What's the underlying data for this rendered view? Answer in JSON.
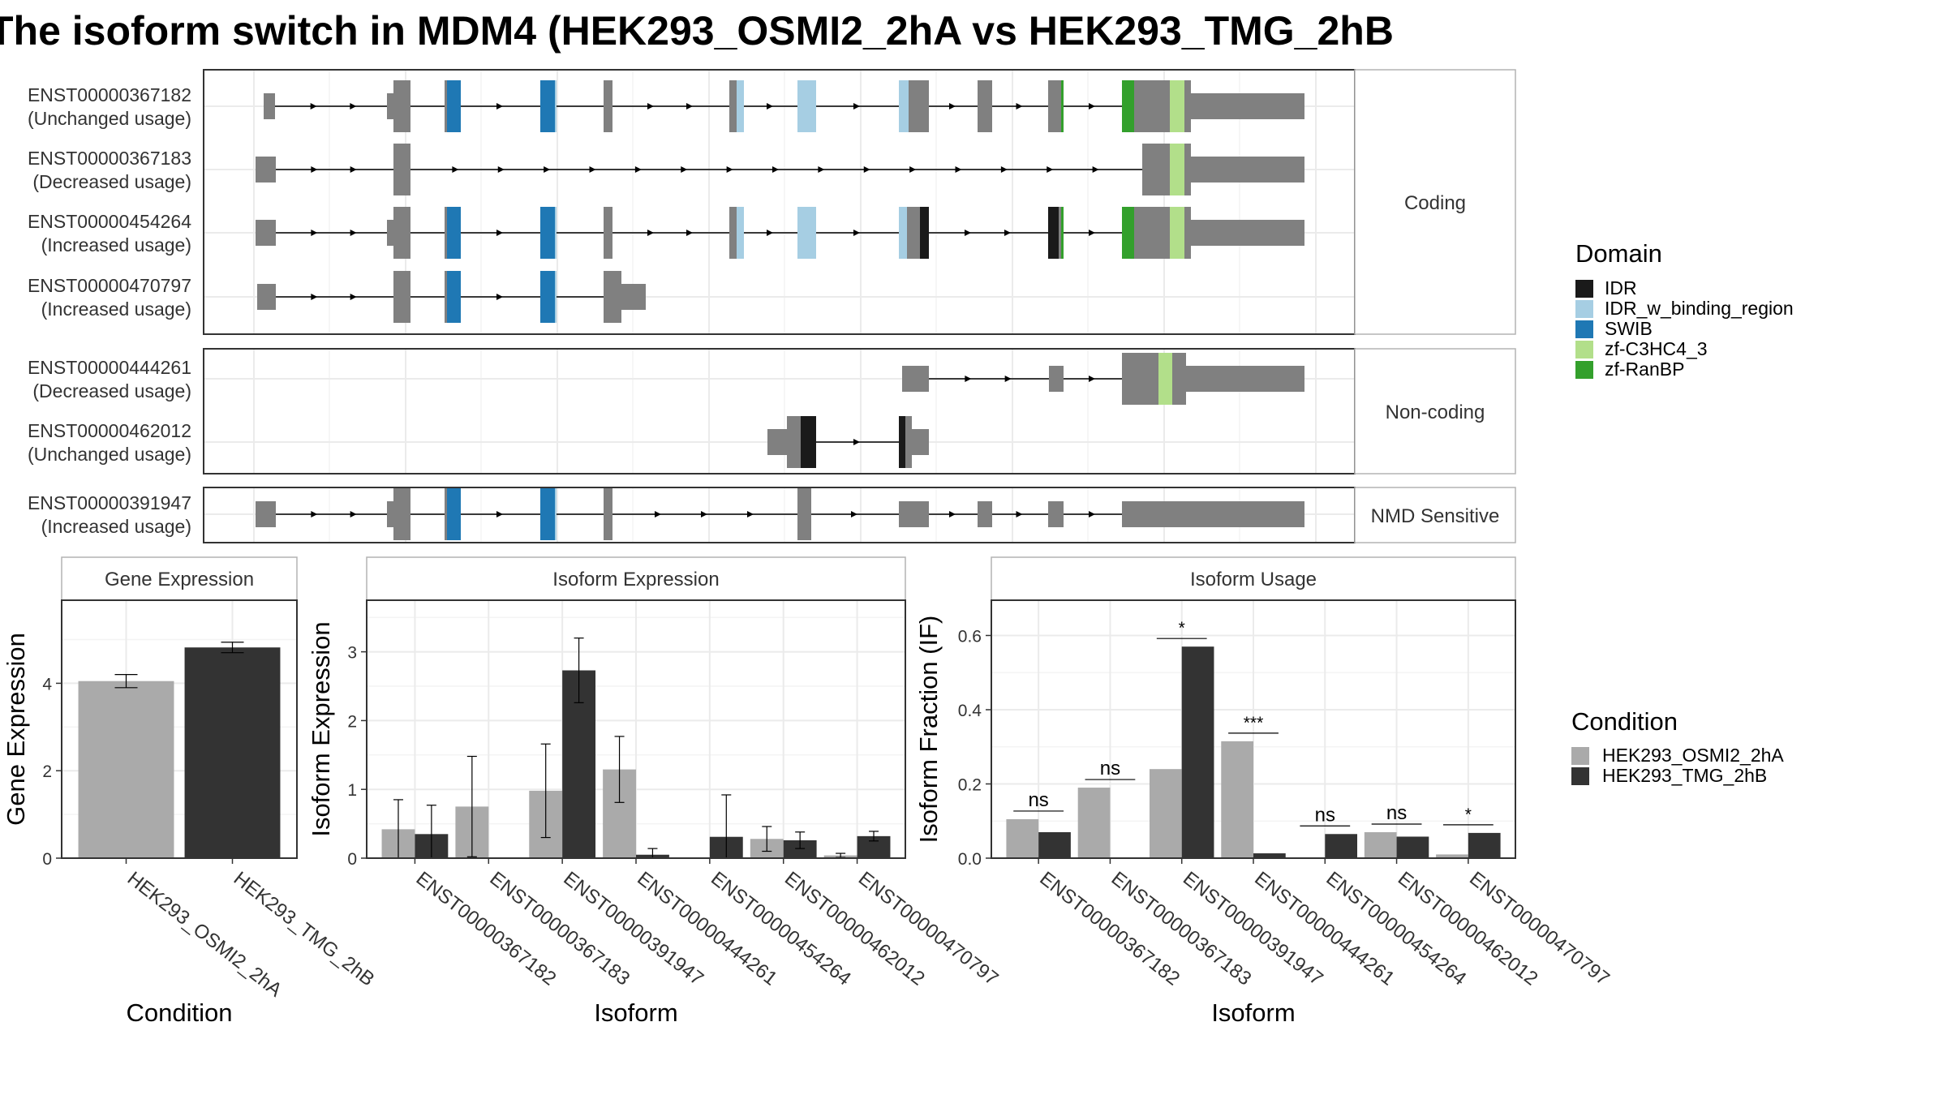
{
  "title": "The isoform switch in MDM4 (HEK293_OSMI2_2hA vs HEK293_TMG_2hB",
  "colors": {
    "exon": "#808080",
    "IDR": "#1a1a1a",
    "IDR_w_binding_region": "#a6cee3",
    "SWIB": "#1f78b4",
    "zf-C3HC4_3": "#b2df8a",
    "zf-RanBP": "#33a02c",
    "condA": "#aaaaaa",
    "condB": "#333333"
  },
  "structure": {
    "panels": [
      {
        "label": "Coding",
        "isoforms": [
          {
            "id": "ENST00000367182",
            "usage": "(Unchanged usage)"
          },
          {
            "id": "ENST00000367183",
            "usage": "(Decreased usage)"
          },
          {
            "id": "ENST00000454264",
            "usage": "(Increased usage)"
          },
          {
            "id": "ENST00000470797",
            "usage": "(Increased usage)"
          }
        ]
      },
      {
        "label": "Non-coding",
        "isoforms": [
          {
            "id": "ENST00000444261",
            "usage": "(Decreased usage)"
          },
          {
            "id": "ENST00000462012",
            "usage": "(Unchanged usage)"
          }
        ]
      },
      {
        "label": "NMD Sensitive",
        "isoforms": [
          {
            "id": "ENST00000391947",
            "usage": "(Increased usage)"
          }
        ]
      }
    ]
  },
  "domain_legend": {
    "title": "Domain",
    "items": [
      "IDR",
      "IDR_w_binding_region",
      "SWIB",
      "zf-C3HC4_3",
      "zf-RanBP"
    ]
  },
  "condition_legend": {
    "title": "Condition",
    "items": [
      "HEK293_OSMI2_2hA",
      "HEK293_TMG_2hB"
    ]
  },
  "chart_data": [
    {
      "type": "bar",
      "title": "Gene Expression",
      "xlabel": "Condition",
      "ylabel": "Gene Expression",
      "categories": [
        "HEK293_OSMI2_2hA",
        "HEK293_TMG_2hB"
      ],
      "values": [
        4.05,
        4.82
      ],
      "errors": [
        0.15,
        0.12
      ],
      "ylim": [
        0,
        5.9
      ],
      "yticks": [
        0,
        2,
        4
      ]
    },
    {
      "type": "bar",
      "title": "Isoform Expression",
      "xlabel": "Isoform",
      "ylabel": "Isoform Expression",
      "categories": [
        "ENST00000367182",
        "ENST00000367183",
        "ENST00000391947",
        "ENST00000444261",
        "ENST00000454264",
        "ENST00000462012",
        "ENST00000470797"
      ],
      "series": [
        {
          "name": "HEK293_OSMI2_2hA",
          "values": [
            0.42,
            0.75,
            0.98,
            1.29,
            0.0,
            0.28,
            0.04
          ],
          "errors": [
            0.43,
            0.73,
            0.68,
            0.48,
            0.0,
            0.18,
            0.03
          ]
        },
        {
          "name": "HEK293_TMG_2hB",
          "values": [
            0.35,
            0.0,
            2.73,
            0.05,
            0.31,
            0.26,
            0.32
          ],
          "errors": [
            0.42,
            0.0,
            0.47,
            0.09,
            0.61,
            0.12,
            0.07
          ]
        }
      ],
      "ylim": [
        0,
        3.75
      ],
      "yticks": [
        0,
        1,
        2,
        3
      ]
    },
    {
      "type": "bar",
      "title": "Isoform Usage",
      "xlabel": "Isoform",
      "ylabel": "Isoform Fraction (IF)",
      "categories": [
        "ENST00000367182",
        "ENST00000367183",
        "ENST00000391947",
        "ENST00000444261",
        "ENST00000454264",
        "ENST00000462012",
        "ENST00000470797"
      ],
      "series": [
        {
          "name": "HEK293_OSMI2_2hA",
          "values": [
            0.105,
            0.19,
            0.24,
            0.315,
            0.0,
            0.07,
            0.01
          ]
        },
        {
          "name": "HEK293_TMG_2hB",
          "values": [
            0.07,
            0.0,
            0.57,
            0.013,
            0.065,
            0.058,
            0.068
          ]
        }
      ],
      "significance": [
        "ns",
        "ns",
        "*",
        "***",
        "ns",
        "ns",
        "*"
      ],
      "ylim": [
        0,
        0.695
      ],
      "yticks": [
        0.0,
        0.2,
        0.4,
        0.6
      ]
    }
  ]
}
